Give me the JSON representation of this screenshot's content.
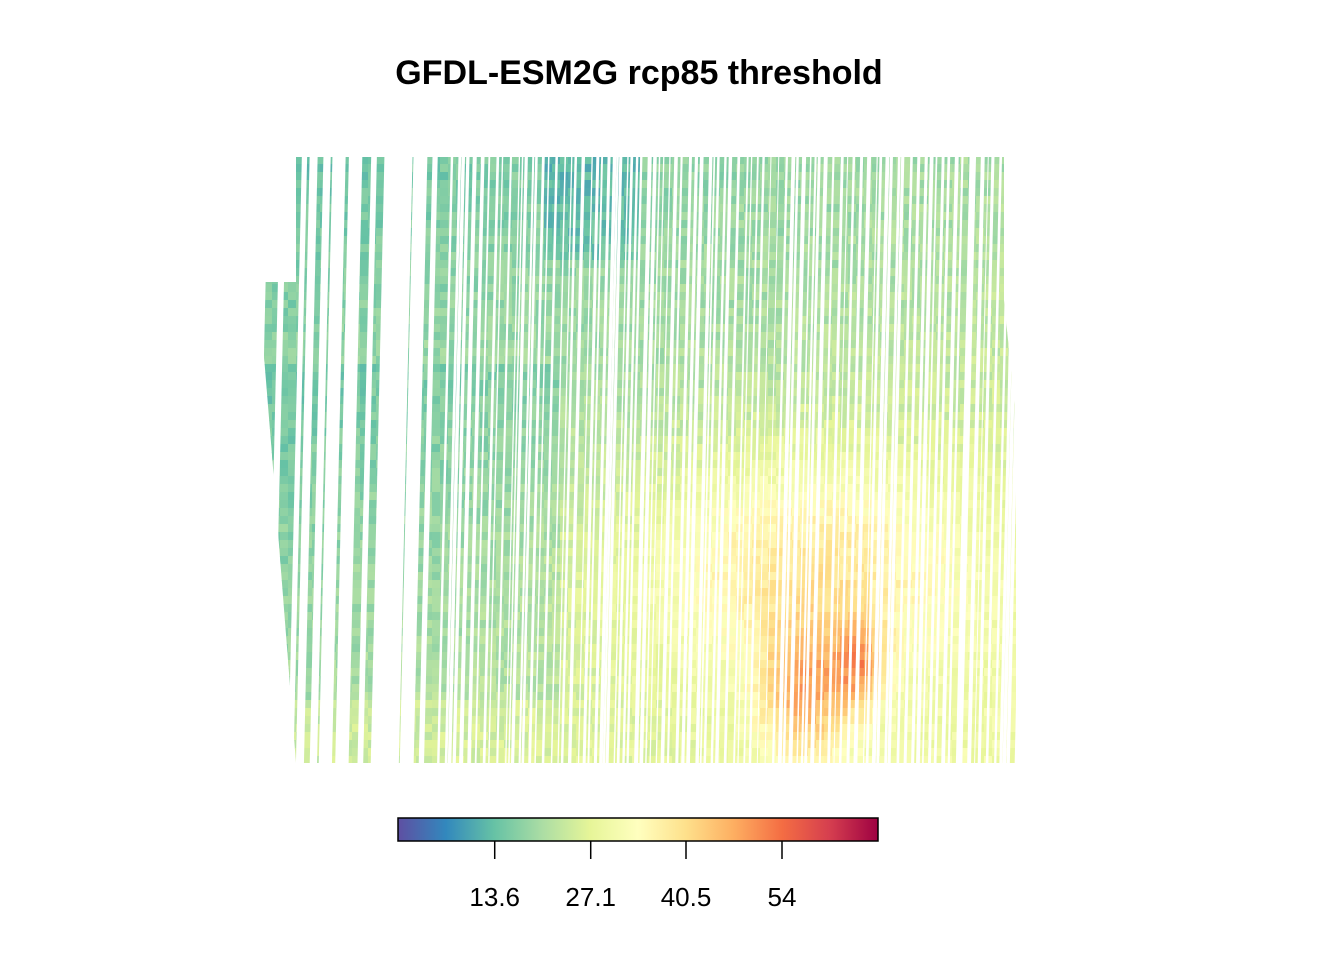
{
  "chart_data": {
    "type": "heatmap",
    "title": "GFDL-ESM2G rcp85 threshold",
    "xlabel": "",
    "ylabel": "",
    "grid": false,
    "colorbar": {
      "orientation": "horizontal",
      "placement": "bottom",
      "palette": [
        "#5E4FA2",
        "#3288BD",
        "#66C2A5",
        "#ABDDA4",
        "#E6F598",
        "#FFFFBF",
        "#FEE08B",
        "#FDAE61",
        "#F46D43",
        "#D53E4F",
        "#9E0142"
      ],
      "range": [
        0,
        67.5
      ],
      "ticks": [
        13.6,
        27.1,
        40.5,
        54
      ],
      "tick_labels": [
        "13.6",
        "27.1",
        "40.5",
        "54"
      ]
    },
    "notes_visible": "raster field with vertical white striping (missing columns)"
  }
}
